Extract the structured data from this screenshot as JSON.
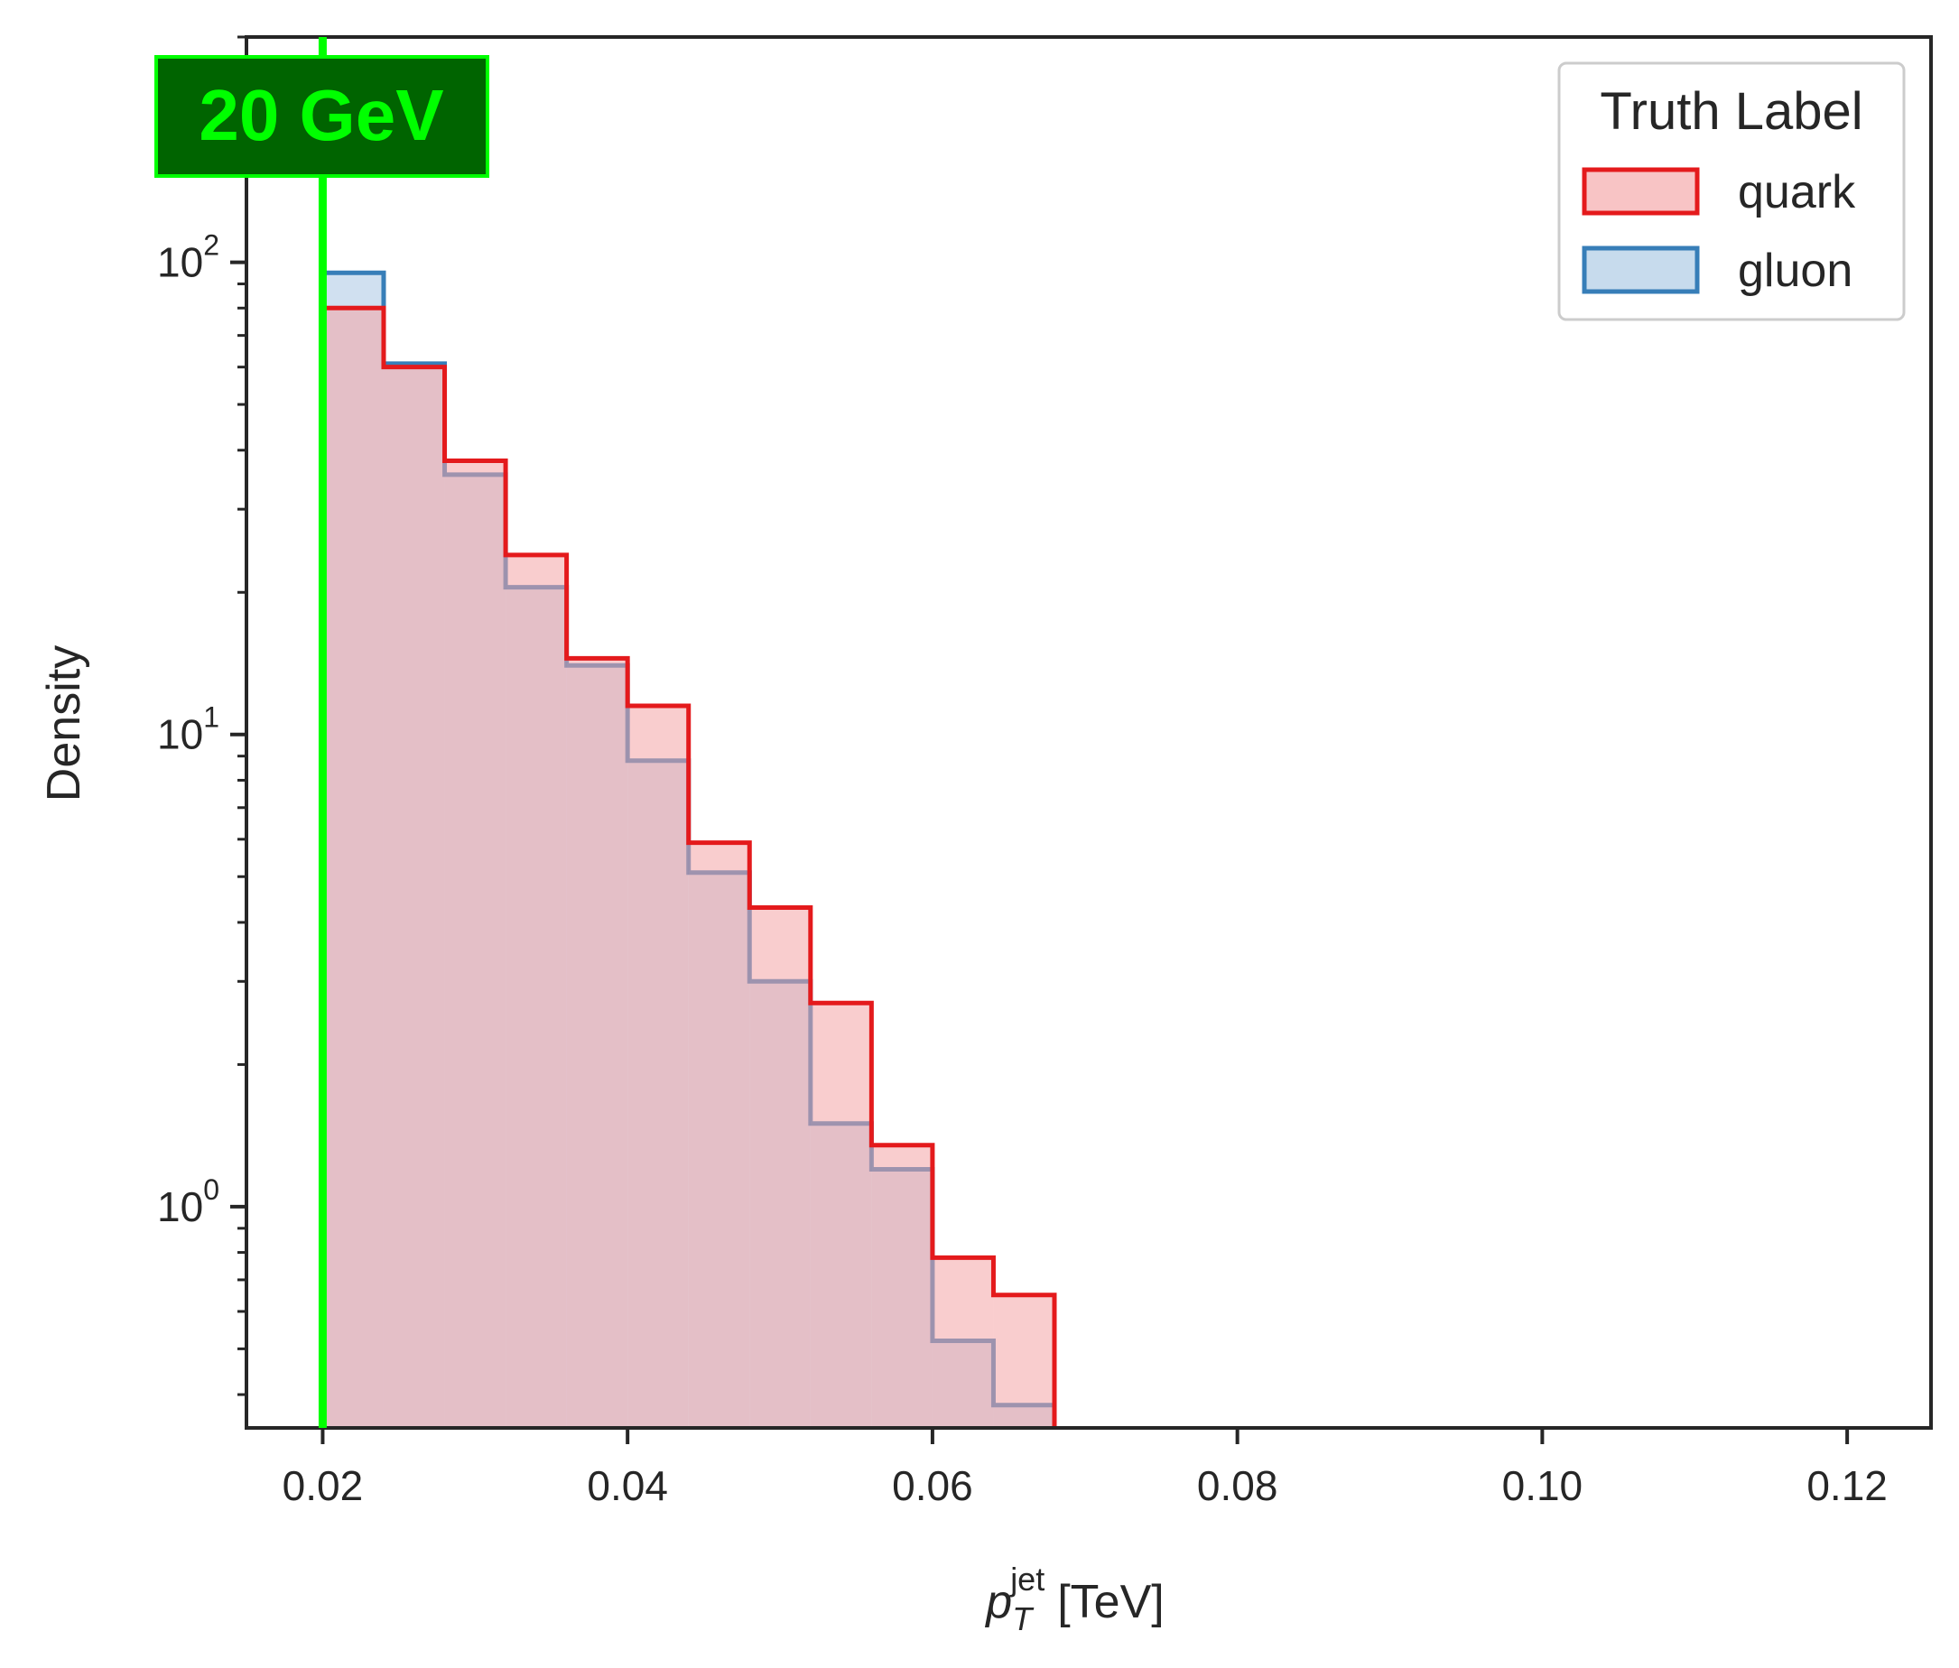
{
  "chart_data": {
    "type": "histogram",
    "yscale": "log",
    "xlim": [
      0.015,
      0.1255
    ],
    "ylim": [
      0.34,
      300
    ],
    "grid": false,
    "xlabel": {
      "main": "p",
      "sub": "T",
      "sup": "jet",
      "unit": "[TeV]"
    },
    "ylabel": "Density",
    "xticks": [
      {
        "value": 0.02,
        "label": "0.02"
      },
      {
        "value": 0.04,
        "label": "0.04"
      },
      {
        "value": 0.06,
        "label": "0.06"
      },
      {
        "value": 0.08,
        "label": "0.08"
      },
      {
        "value": 0.1,
        "label": "0.10"
      },
      {
        "value": 0.12,
        "label": "0.12"
      }
    ],
    "yticks": [
      {
        "value": 1,
        "base": "10",
        "exp": "0"
      },
      {
        "value": 10,
        "base": "10",
        "exp": "1"
      },
      {
        "value": 100,
        "base": "10",
        "exp": "2"
      }
    ],
    "bin_edges": [
      0.02,
      0.024,
      0.028,
      0.032,
      0.036,
      0.04,
      0.044,
      0.048,
      0.052,
      0.056,
      0.06,
      0.064,
      0.068
    ],
    "series": [
      {
        "name": "quark",
        "color": "#e41a1c",
        "fill": "#f4a4a6",
        "values": [
          80,
          60,
          38,
          24,
          14.5,
          11.5,
          5.9,
          4.3,
          2.7,
          1.35,
          0.78,
          0.65
        ]
      },
      {
        "name": "gluon",
        "color": "#377eb8",
        "fill": "#a9c7e3",
        "values": [
          95,
          61,
          35.5,
          20.5,
          14,
          8.8,
          5.1,
          3.0,
          1.5,
          1.2,
          0.52,
          0.38
        ]
      }
    ],
    "legend": {
      "title": "Truth Label",
      "position": "top-right"
    },
    "annotation": {
      "text": "20 GeV",
      "x": 0.02,
      "line_color": "#00ff00",
      "box_color": "#006400",
      "text_color": "#00ff00"
    }
  }
}
